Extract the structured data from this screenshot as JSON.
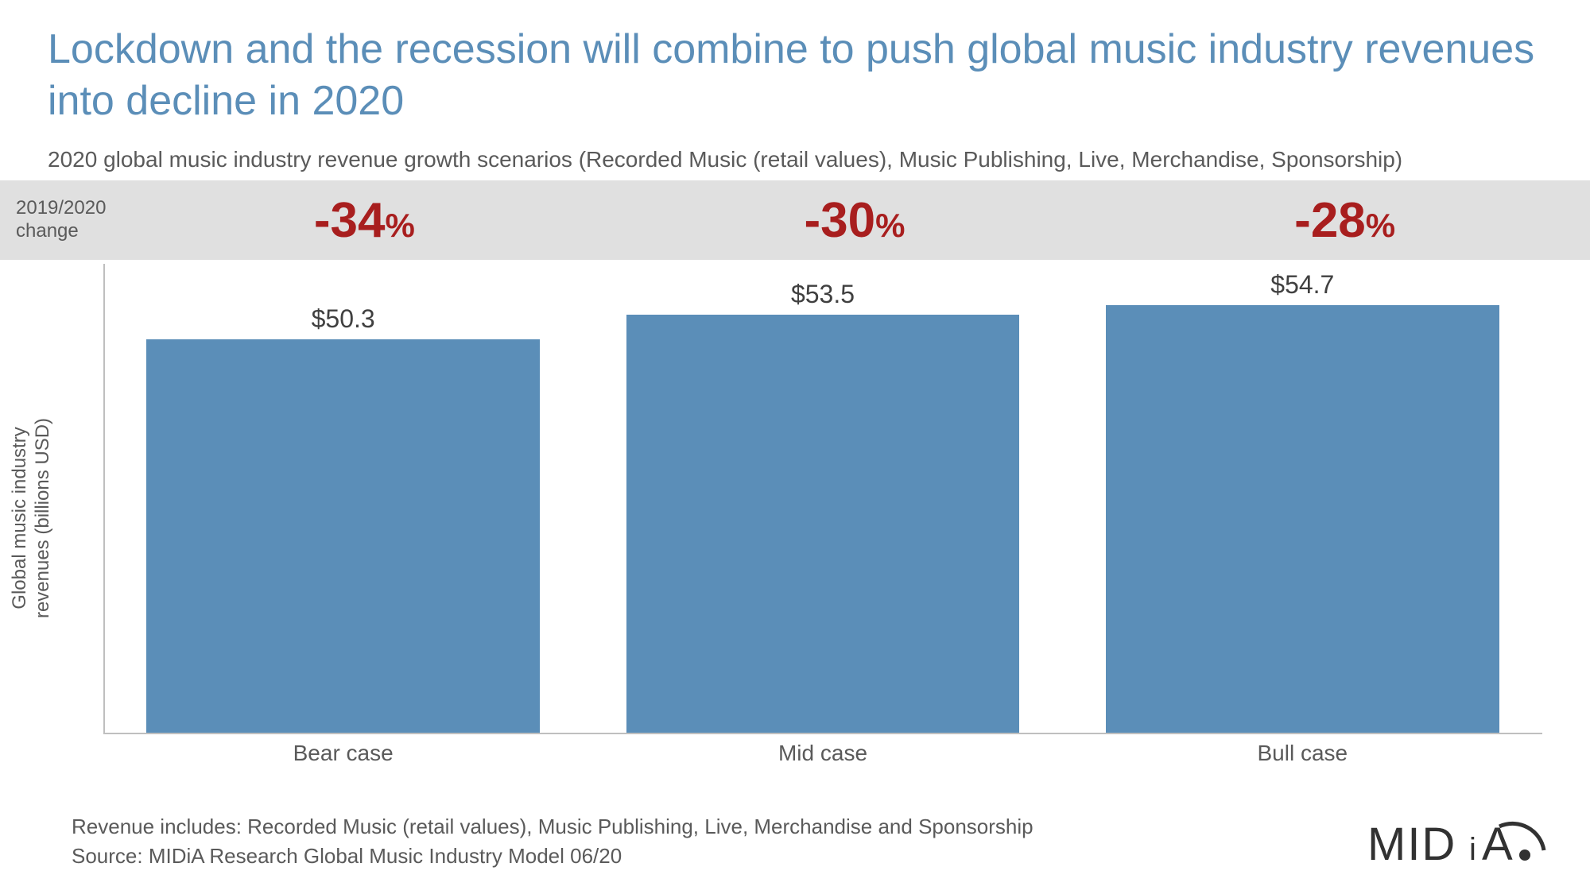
{
  "title": "Lockdown and the recession will combine to push global music industry revenues into decline in 2020",
  "subtitle": "2020 global music industry revenue growth scenarios (Recorded Music (retail values), Music Publishing, Live, Merchandise, Sponsorship)",
  "change_strip": {
    "label": "2019/2020\nchange",
    "values": [
      "-34",
      "-30",
      "-28"
    ],
    "suffix": "%",
    "text_color": "#a81e1e",
    "big_fontsize": 62,
    "pct_fontsize": 42,
    "background": "#e0e0e0"
  },
  "chart": {
    "type": "bar",
    "categories": [
      "Bear case",
      "Mid case",
      "Bull case"
    ],
    "values": [
      50.3,
      53.5,
      54.7
    ],
    "value_prefix": "$",
    "bar_color": "#5b8eb8",
    "ylabel": "Global music industry\nrevenues (billions USD)",
    "ylim_max": 60,
    "axis_color": "#bfbfbf",
    "value_label_color": "#404040",
    "value_label_fontsize": 32,
    "xlabel_color": "#5a5a5a",
    "xlabel_fontsize": 28,
    "bar_width_pct": 82
  },
  "footer": {
    "line1": "Revenue includes: Recorded Music (retail values), Music Publishing, Live, Merchandise and Sponsorship",
    "line2": "Source: MIDiA Research Global Music Industry Model 06/20"
  },
  "logo_text": "MIDiA",
  "colors": {
    "title": "#5b8eb8",
    "body_text": "#5a5a5a",
    "background": "#ffffff"
  }
}
